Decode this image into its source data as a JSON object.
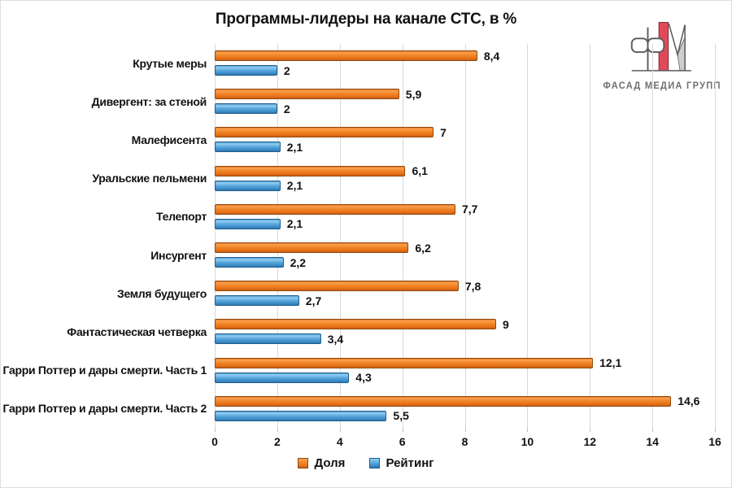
{
  "title": "Программы-лидеры на канале СТС, в %",
  "logo": {
    "text": "ФАСАД МЕДИА ГРУПП"
  },
  "chart_data": {
    "type": "bar",
    "orientation": "horizontal",
    "title": "Программы-лидеры на канале СТС, в %",
    "categories": [
      "Крутые меры",
      "Дивергент: за стеной",
      "Малефисента",
      "Уральские пельмени",
      "Телепорт",
      "Инсургент",
      "Земля будущего",
      "Фантастическая четверка",
      "Гарри Поттер и дары смерти. Часть 1",
      "Гарри Поттер и дары смерти. Часть 2"
    ],
    "series": [
      {
        "name": "Доля",
        "color": "#ED7D31",
        "values": [
          8.4,
          5.9,
          7,
          6.1,
          7.7,
          6.2,
          7.8,
          9,
          12.1,
          14.6
        ],
        "labels": [
          "8,4",
          "5,9",
          "7",
          "6,1",
          "7,7",
          "6,2",
          "7,8",
          "9",
          "12,1",
          "14,6"
        ]
      },
      {
        "name": "Рейтинг",
        "color": "#4A9FD9",
        "values": [
          2,
          2,
          2.1,
          2.1,
          2.1,
          2.2,
          2.7,
          3.4,
          4.3,
          5.5
        ],
        "labels": [
          "2",
          "2",
          "2,1",
          "2,1",
          "2,1",
          "2,2",
          "2,7",
          "3,4",
          "4,3",
          "5,5"
        ]
      }
    ],
    "xlim": [
      0,
      16
    ],
    "x_ticks": [
      "0",
      "2",
      "4",
      "6",
      "8",
      "10",
      "12",
      "14",
      "16"
    ],
    "grid": true,
    "legend_position": "bottom",
    "value_labels_shown": true
  }
}
